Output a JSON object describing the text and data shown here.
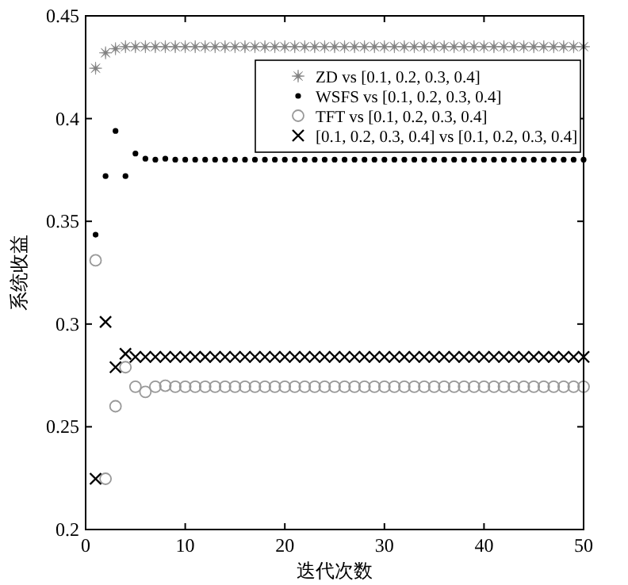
{
  "chart_data": {
    "type": "scatter",
    "xlabel": "迭代次数",
    "ylabel": "系统收益",
    "x": [
      1,
      2,
      3,
      4,
      5,
      6,
      7,
      8,
      9,
      10,
      11,
      12,
      13,
      14,
      15,
      16,
      17,
      18,
      19,
      20,
      21,
      22,
      23,
      24,
      25,
      26,
      27,
      28,
      29,
      30,
      31,
      32,
      33,
      34,
      35,
      36,
      37,
      38,
      39,
      40,
      41,
      42,
      43,
      44,
      45,
      46,
      47,
      48,
      49,
      50
    ],
    "xlim": [
      0,
      50
    ],
    "xticks": [
      0,
      10,
      20,
      30,
      40,
      50
    ],
    "ylim": [
      0.2,
      0.45
    ],
    "yticks": [
      0.2,
      0.25,
      0.3,
      0.35,
      0.4,
      0.45
    ],
    "legend": "top right",
    "grid": false,
    "series": [
      {
        "name": "ZD vs [0.1, 0.2, 0.3, 0.4]",
        "color": "#808080",
        "marker": "star",
        "values": [
          0.4245,
          0.432,
          0.434,
          0.435,
          0.435,
          0.435,
          0.435,
          0.435,
          0.435,
          0.435,
          0.435,
          0.435,
          0.435,
          0.435,
          0.435,
          0.435,
          0.435,
          0.435,
          0.435,
          0.435,
          0.435,
          0.435,
          0.435,
          0.435,
          0.435,
          0.435,
          0.435,
          0.435,
          0.435,
          0.435,
          0.435,
          0.435,
          0.435,
          0.435,
          0.435,
          0.435,
          0.435,
          0.435,
          0.435,
          0.435,
          0.435,
          0.435,
          0.435,
          0.435,
          0.435,
          0.435,
          0.435,
          0.435,
          0.435,
          0.435
        ]
      },
      {
        "name": "WSFS vs [0.1, 0.2, 0.3, 0.4]",
        "color": "#000000",
        "values": [
          0.3435,
          0.372,
          0.394,
          0.372,
          0.383,
          0.3805,
          0.38,
          0.3805,
          0.38,
          0.38,
          0.38,
          0.38,
          0.38,
          0.38,
          0.38,
          0.38,
          0.38,
          0.38,
          0.38,
          0.38,
          0.38,
          0.38,
          0.38,
          0.38,
          0.38,
          0.38,
          0.38,
          0.38,
          0.38,
          0.38,
          0.38,
          0.38,
          0.38,
          0.38,
          0.38,
          0.38,
          0.38,
          0.38,
          0.38,
          0.38,
          0.38,
          0.38,
          0.38,
          0.38,
          0.38,
          0.38,
          0.38,
          0.38,
          0.38,
          0.38
        ]
      },
      {
        "name": "TFT vs [0.1, 0.2, 0.3, 0.4]",
        "color": "#999999",
        "marker": "circle",
        "values": [
          0.331,
          0.2247,
          0.26,
          0.279,
          0.2695,
          0.267,
          0.2695,
          0.27,
          0.2695,
          0.2695,
          0.2695,
          0.2695,
          0.2695,
          0.2695,
          0.2695,
          0.2695,
          0.2695,
          0.2695,
          0.2695,
          0.2695,
          0.2695,
          0.2695,
          0.2695,
          0.2695,
          0.2695,
          0.2695,
          0.2695,
          0.2695,
          0.2695,
          0.2695,
          0.2695,
          0.2695,
          0.2695,
          0.2695,
          0.2695,
          0.2695,
          0.2695,
          0.2695,
          0.2695,
          0.2695,
          0.2695,
          0.2695,
          0.2695,
          0.2695,
          0.2695,
          0.2695,
          0.2695,
          0.2695,
          0.2695,
          0.2695
        ]
      },
      {
        "name": "[0.1, 0.2, 0.3, 0.4] vs [0.1, 0.2, 0.3, 0.4]",
        "color": "#000000",
        "marker": "cross",
        "values": [
          0.2247,
          0.301,
          0.279,
          0.2855,
          0.284,
          0.284,
          0.284,
          0.284,
          0.284,
          0.284,
          0.284,
          0.284,
          0.284,
          0.284,
          0.284,
          0.284,
          0.284,
          0.284,
          0.284,
          0.284,
          0.284,
          0.284,
          0.284,
          0.284,
          0.284,
          0.284,
          0.284,
          0.284,
          0.284,
          0.284,
          0.284,
          0.284,
          0.284,
          0.284,
          0.284,
          0.284,
          0.284,
          0.284,
          0.284,
          0.284,
          0.284,
          0.284,
          0.284,
          0.284,
          0.284,
          0.284,
          0.284,
          0.284,
          0.284,
          0.284
        ]
      }
    ]
  }
}
